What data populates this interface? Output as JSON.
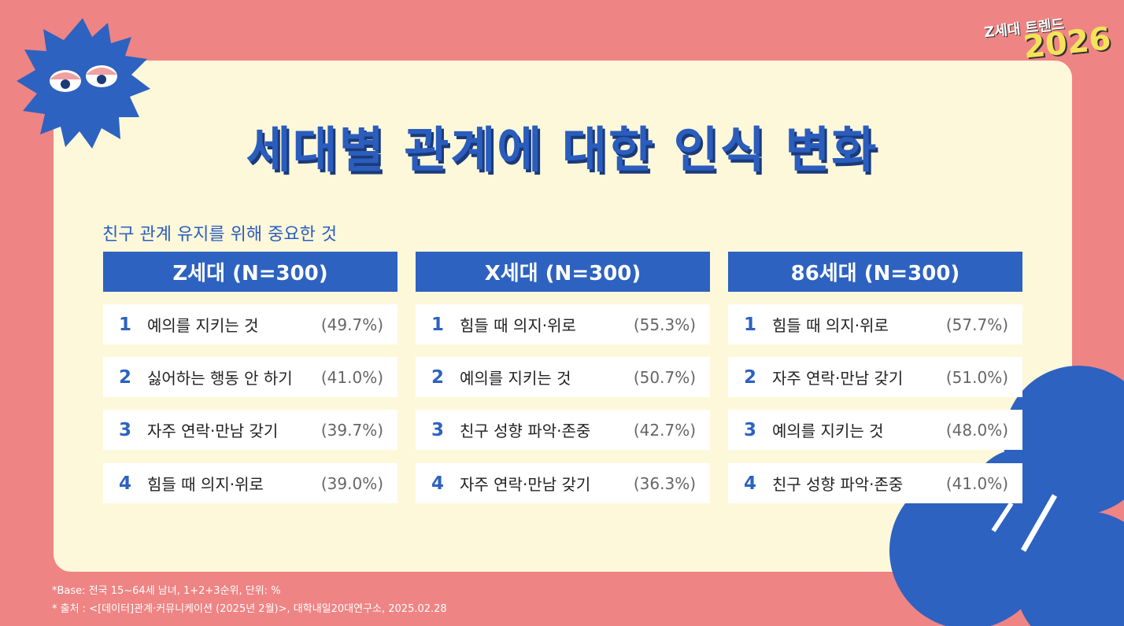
{
  "badge": {
    "label": "Z세대 트렌드",
    "year": "2026"
  },
  "title": "세대별 관계에 대한 인식 변화",
  "subtitle": "친구 관계 유지를 위해 중요한 것",
  "columns": [
    {
      "header": "Z세대 (N=300)",
      "rows": [
        {
          "rank": "1",
          "item": "예의를 지키는 것",
          "value": "(49.7%)"
        },
        {
          "rank": "2",
          "item": "싫어하는 행동 안 하기",
          "value": "(41.0%)"
        },
        {
          "rank": "3",
          "item": "자주 연락·만남 갖기",
          "value": "(39.7%)"
        },
        {
          "rank": "4",
          "item": "힘들 때 의지·위로",
          "value": "(39.0%)"
        }
      ]
    },
    {
      "header": "X세대 (N=300)",
      "rows": [
        {
          "rank": "1",
          "item": "힘들 때 의지·위로",
          "value": "(55.3%)"
        },
        {
          "rank": "2",
          "item": "예의를 지키는 것",
          "value": "(50.7%)"
        },
        {
          "rank": "3",
          "item": "친구 성향 파악·존중",
          "value": "(42.7%)"
        },
        {
          "rank": "4",
          "item": "자주 연락·만남 갖기",
          "value": "(36.3%)"
        }
      ]
    },
    {
      "header": "86세대 (N=300)",
      "rows": [
        {
          "rank": "1",
          "item": "힘들 때 의지·위로",
          "value": "(57.7%)"
        },
        {
          "rank": "2",
          "item": "자주 연락·만남 갖기",
          "value": "(51.0%)"
        },
        {
          "rank": "3",
          "item": "예의를 지키는 것",
          "value": "(48.0%)"
        },
        {
          "rank": "4",
          "item": "친구 성향 파악·존중",
          "value": "(41.0%)"
        }
      ]
    }
  ],
  "footnotes": [
    "*Base: 전국 15~64세 남녀, 1+2+3순위, 단위: %",
    "* 출처 : <[데이터]관계·커뮤니케이션 (2025년 2월)>, 대학내일20대연구소, 2025.02.28"
  ]
}
